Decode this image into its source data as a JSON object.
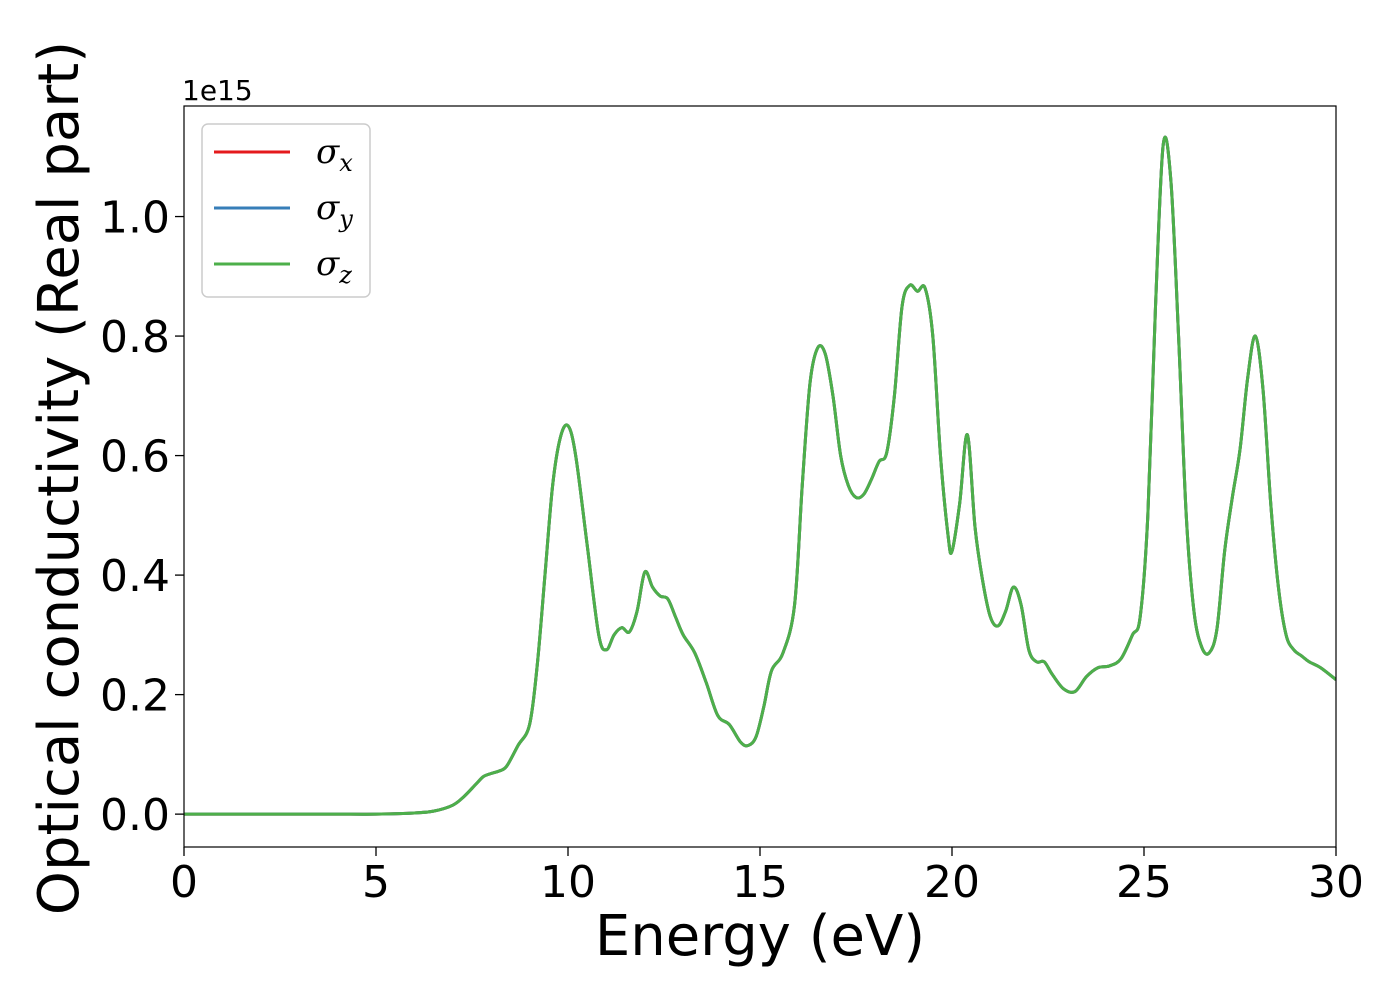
{
  "chart_data": {
    "type": "line",
    "xlabel": "Energy (eV)",
    "ylabel": "Optical conductivity (Real part)",
    "y_offset_label": "1e15",
    "xlim": [
      0,
      30
    ],
    "ylim": [
      -0.055,
      1.185
    ],
    "x_ticks": [
      0,
      5,
      10,
      15,
      20,
      25,
      30
    ],
    "x_tick_labels": [
      "0",
      "5",
      "10",
      "15",
      "20",
      "25",
      "30"
    ],
    "y_ticks": [
      0.0,
      0.2,
      0.4,
      0.6,
      0.8,
      1.0
    ],
    "y_tick_labels": [
      "0.0",
      "0.2",
      "0.4",
      "0.6",
      "0.8",
      "1.0"
    ],
    "grid": false,
    "legend_position": "top-left",
    "x": [
      0,
      1,
      2,
      3,
      4,
      5,
      6,
      6.5,
      7,
      7.3,
      7.6,
      7.8,
      8.0,
      8.2,
      8.4,
      8.7,
      9.0,
      9.2,
      9.4,
      9.6,
      9.8,
      10.0,
      10.2,
      10.5,
      10.8,
      11.0,
      11.2,
      11.4,
      11.6,
      11.8,
      12.0,
      12.2,
      12.4,
      12.6,
      12.8,
      13.0,
      13.3,
      13.6,
      13.9,
      14.2,
      14.5,
      14.7,
      14.9,
      15.1,
      15.3,
      15.6,
      15.9,
      16.1,
      16.3,
      16.5,
      16.7,
      16.9,
      17.1,
      17.3,
      17.5,
      17.7,
      17.9,
      18.1,
      18.3,
      18.5,
      18.7,
      18.9,
      19.1,
      19.3,
      19.5,
      19.7,
      19.9,
      20.0,
      20.2,
      20.4,
      20.6,
      20.8,
      21.0,
      21.2,
      21.4,
      21.6,
      21.8,
      22.0,
      22.2,
      22.4,
      22.6,
      22.9,
      23.2,
      23.5,
      23.8,
      24.1,
      24.4,
      24.7,
      24.9,
      25.1,
      25.3,
      25.5,
      25.7,
      25.9,
      26.1,
      26.3,
      26.5,
      26.7,
      26.9,
      27.1,
      27.3,
      27.5,
      27.7,
      27.9,
      28.1,
      28.3,
      28.5,
      28.7,
      28.9,
      29.1,
      29.3,
      29.6,
      30.0
    ],
    "series": [
      {
        "name": "σx",
        "color": "#e41a1c",
        "values": [
          0,
          0,
          0,
          0,
          0,
          0,
          0.002,
          0.005,
          0.015,
          0.03,
          0.05,
          0.063,
          0.068,
          0.072,
          0.08,
          0.115,
          0.15,
          0.25,
          0.4,
          0.55,
          0.63,
          0.65,
          0.6,
          0.45,
          0.3,
          0.275,
          0.3,
          0.312,
          0.305,
          0.34,
          0.405,
          0.38,
          0.365,
          0.36,
          0.33,
          0.3,
          0.27,
          0.22,
          0.165,
          0.15,
          0.12,
          0.115,
          0.13,
          0.18,
          0.24,
          0.27,
          0.35,
          0.55,
          0.72,
          0.78,
          0.77,
          0.7,
          0.6,
          0.55,
          0.53,
          0.535,
          0.56,
          0.59,
          0.605,
          0.7,
          0.85,
          0.885,
          0.875,
          0.88,
          0.8,
          0.6,
          0.465,
          0.44,
          0.52,
          0.635,
          0.48,
          0.39,
          0.33,
          0.315,
          0.34,
          0.38,
          0.35,
          0.275,
          0.255,
          0.255,
          0.235,
          0.21,
          0.205,
          0.23,
          0.245,
          0.248,
          0.26,
          0.3,
          0.33,
          0.5,
          0.85,
          1.12,
          1.06,
          0.8,
          0.5,
          0.34,
          0.28,
          0.27,
          0.31,
          0.44,
          0.53,
          0.61,
          0.73,
          0.8,
          0.71,
          0.52,
          0.38,
          0.3,
          0.275,
          0.265,
          0.255,
          0.245,
          0.225
        ]
      },
      {
        "name": "σy",
        "color": "#377eb8",
        "values": [
          0,
          0,
          0,
          0,
          0,
          0,
          0.002,
          0.005,
          0.015,
          0.03,
          0.05,
          0.063,
          0.068,
          0.072,
          0.08,
          0.115,
          0.15,
          0.25,
          0.4,
          0.55,
          0.63,
          0.65,
          0.6,
          0.45,
          0.3,
          0.275,
          0.3,
          0.312,
          0.305,
          0.34,
          0.405,
          0.38,
          0.365,
          0.36,
          0.33,
          0.3,
          0.27,
          0.22,
          0.165,
          0.15,
          0.12,
          0.115,
          0.13,
          0.18,
          0.24,
          0.27,
          0.35,
          0.55,
          0.72,
          0.78,
          0.77,
          0.7,
          0.6,
          0.55,
          0.53,
          0.535,
          0.56,
          0.59,
          0.605,
          0.7,
          0.85,
          0.885,
          0.875,
          0.88,
          0.8,
          0.6,
          0.465,
          0.44,
          0.52,
          0.635,
          0.48,
          0.39,
          0.33,
          0.315,
          0.34,
          0.38,
          0.35,
          0.275,
          0.255,
          0.255,
          0.235,
          0.21,
          0.205,
          0.23,
          0.245,
          0.248,
          0.26,
          0.3,
          0.33,
          0.5,
          0.85,
          1.12,
          1.06,
          0.8,
          0.5,
          0.34,
          0.28,
          0.27,
          0.31,
          0.44,
          0.53,
          0.61,
          0.73,
          0.8,
          0.71,
          0.52,
          0.38,
          0.3,
          0.275,
          0.265,
          0.255,
          0.245,
          0.225
        ]
      },
      {
        "name": "σz",
        "color": "#4daf4a",
        "values": [
          0,
          0,
          0,
          0,
          0,
          0,
          0.002,
          0.005,
          0.015,
          0.03,
          0.05,
          0.063,
          0.068,
          0.072,
          0.08,
          0.115,
          0.15,
          0.25,
          0.4,
          0.55,
          0.63,
          0.65,
          0.6,
          0.45,
          0.3,
          0.275,
          0.3,
          0.312,
          0.305,
          0.34,
          0.405,
          0.38,
          0.365,
          0.36,
          0.33,
          0.3,
          0.27,
          0.22,
          0.165,
          0.15,
          0.12,
          0.115,
          0.13,
          0.18,
          0.24,
          0.27,
          0.35,
          0.55,
          0.72,
          0.78,
          0.77,
          0.7,
          0.6,
          0.55,
          0.53,
          0.535,
          0.56,
          0.59,
          0.605,
          0.7,
          0.85,
          0.885,
          0.875,
          0.88,
          0.8,
          0.6,
          0.465,
          0.44,
          0.52,
          0.635,
          0.48,
          0.39,
          0.33,
          0.315,
          0.34,
          0.38,
          0.35,
          0.275,
          0.255,
          0.255,
          0.235,
          0.21,
          0.205,
          0.23,
          0.245,
          0.248,
          0.26,
          0.3,
          0.33,
          0.5,
          0.85,
          1.12,
          1.06,
          0.8,
          0.5,
          0.34,
          0.28,
          0.27,
          0.31,
          0.44,
          0.53,
          0.61,
          0.73,
          0.8,
          0.71,
          0.52,
          0.38,
          0.3,
          0.275,
          0.265,
          0.255,
          0.245,
          0.225
        ]
      }
    ],
    "legend": [
      {
        "symbol": "σ",
        "sub": "x",
        "color": "#e41a1c"
      },
      {
        "symbol": "σ",
        "sub": "y",
        "color": "#377eb8"
      },
      {
        "symbol": "σ",
        "sub": "z",
        "color": "#4daf4a"
      }
    ]
  }
}
